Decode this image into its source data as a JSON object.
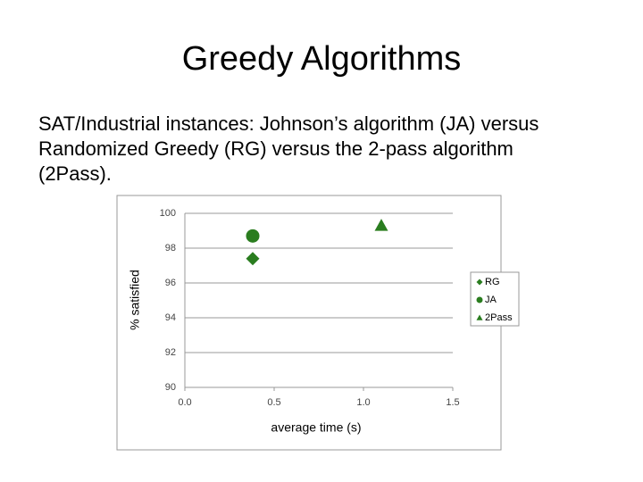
{
  "slide": {
    "title": "Greedy Algorithms",
    "text": [
      "SAT/Industrial instances: Johnson’s algorithm (JA) versus",
      "Randomized Greedy (RG) versus the 2-pass algorithm",
      "(2Pass)."
    ]
  },
  "chart_data": {
    "type": "scatter",
    "xlabel": "average time (s)",
    "ylabel": "% satisfied",
    "xlim": [
      0,
      1.5
    ],
    "xticks": [
      {
        "value": 0,
        "label": "0.0"
      },
      0.5,
      {
        "value": 1,
        "label": "1.0"
      },
      1.5
    ],
    "ylim": [
      90,
      100
    ],
    "yticks": [
      90,
      92,
      94,
      96,
      98,
      100
    ],
    "grid": true,
    "legend": "right",
    "series": [
      {
        "name": "RG",
        "color": "#2a7d1f",
        "marker": "diamond",
        "x": [
          0.38
        ],
        "values": [
          97.4
        ]
      },
      {
        "name": "JA",
        "color": "#2a7d1f",
        "marker": "circle",
        "x": [
          0.38
        ],
        "values": [
          98.7
        ]
      },
      {
        "name": "2Pass",
        "color": "#2a7d1f",
        "marker": "triangle",
        "x": [
          1.1
        ],
        "values": [
          99.3
        ]
      }
    ]
  }
}
